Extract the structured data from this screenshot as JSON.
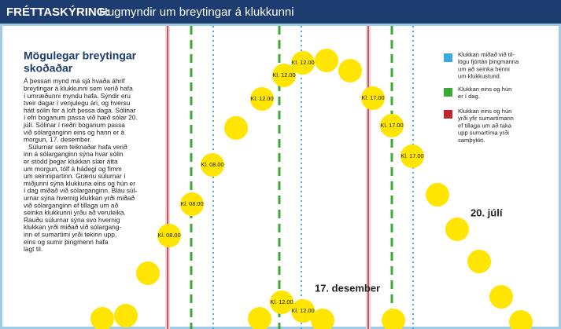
{
  "header": {
    "label": "FRÉTTASKÝRING:",
    "title": "Hugmyndir um breytingar á klukkunni"
  },
  "article": {
    "title": [
      "Mögulegar breytingar",
      "skoðaðar"
    ],
    "body": [
      "Á þessari mynd má sjá hvaða áhrif",
      "breytingar á klukkunni sem verið hafa",
      "í umræðunni myndu hafa. Sýndir eru",
      "tveir dagar í venjulegu ári, og hversu",
      "hátt sólin fer á loft þessa daga. Sólinar",
      "í efri boganum passa við hæð sólar 20.",
      "júlí. Sólinar í neðri boganum passa",
      "við sólarganginn eins og hann er á",
      "morgun, 17. desember.",
      "Súlurnar sem teiknaðar hafa verið",
      "inn á sólarganginn sýna hvar sólin",
      "er stödd þegar klukkan slær átta",
      "um morgun, tólf á hádegi og fimm",
      "um seinnipartinn. Grænu súlurnar í",
      "miðjunni sýna klukkuna eins og hún er",
      "í dag miðað við sólarganginn. Bláu súl-",
      "urnar sýna hvernig klukkan yrði miðað",
      "við sólarganginn ef tillaga um að",
      "seinka klukkunni yrðu að veruleika.",
      "Rauðu súlurnar sýna svo hvernig",
      "klukkan yrði miðað við sólargang-",
      "inn ef sumartimi yrði tekinn upp,",
      "eins og sumir þingmenn hafa",
      "lagt til."
    ]
  },
  "legend": [
    {
      "lines": [
        "Klukkan miðað við til-",
        "lögu fjórtán þingmanna",
        "um að seinka henni",
        "um klukkustund."
      ]
    },
    {
      "lines": [
        "Klukkan eins og hún",
        "er í dag."
      ]
    },
    {
      "lines": [
        "Klukkan eins og hún",
        "yrði yfir sumartímann",
        "ef tillaga um að taka",
        "upp sumartíma yrði",
        "samþykkt."
      ]
    }
  ],
  "sun_labels": {
    "summer": [
      "Kl. 08.00",
      "Kl. 08.00",
      "Kl. 08.00",
      "Kl. 12.00",
      "Kl. 12.00",
      "Kl. 12.00",
      "Kl. 17.00",
      "Kl. 17.00",
      "Kl. 17.00"
    ],
    "winter": [
      "Kl. 12.00",
      "Kl. 12.00"
    ]
  },
  "day_labels": {
    "summer": "20. júlí",
    "winter": "17. desember"
  }
}
